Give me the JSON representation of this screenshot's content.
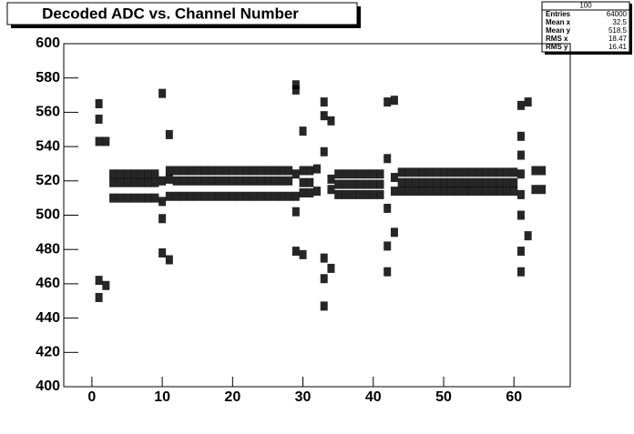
{
  "chart_data": {
    "type": "scatter",
    "title": "Decoded ADC vs. Channel Number",
    "stats": {
      "title": "100",
      "rows": [
        {
          "label": "Entries",
          "value": "64000"
        },
        {
          "label": "Mean x",
          "value": "32.5"
        },
        {
          "label": "Mean y",
          "value": "518.5"
        },
        {
          "label": "RMS x",
          "value": "18.47"
        },
        {
          "label": "RMS y",
          "value": "16.41"
        }
      ]
    },
    "color": "#000000",
    "xlim": [
      -4,
      68
    ],
    "ylim": [
      400,
      600
    ],
    "xticks": [
      0,
      10,
      20,
      30,
      40,
      50,
      60
    ],
    "yticks": [
      400,
      420,
      440,
      460,
      480,
      500,
      520,
      540,
      560,
      580,
      600
    ],
    "x": [
      1,
      1,
      1,
      1,
      1,
      2,
      2,
      3,
      3,
      3,
      4,
      4,
      4,
      5,
      5,
      5,
      6,
      6,
      6,
      7,
      7,
      7,
      8,
      8,
      8,
      9,
      9,
      9,
      10,
      10,
      10,
      10,
      10,
      11,
      11,
      11,
      11,
      11,
      12,
      12,
      12,
      13,
      13,
      13,
      14,
      14,
      14,
      15,
      15,
      15,
      16,
      16,
      16,
      17,
      17,
      17,
      18,
      18,
      18,
      19,
      19,
      19,
      20,
      20,
      20,
      21,
      21,
      21,
      22,
      22,
      22,
      23,
      23,
      23,
      24,
      24,
      24,
      25,
      25,
      25,
      26,
      26,
      26,
      27,
      27,
      27,
      28,
      28,
      28,
      29,
      29,
      29,
      29,
      29,
      29,
      30,
      30,
      30,
      30,
      30,
      31,
      31,
      31,
      32,
      32,
      33,
      33,
      33,
      33,
      33,
      33,
      34,
      34,
      34,
      34,
      35,
      35,
      35,
      36,
      36,
      36,
      37,
      37,
      37,
      38,
      38,
      38,
      39,
      39,
      39,
      40,
      40,
      40,
      41,
      41,
      41,
      42,
      42,
      42,
      42,
      42,
      43,
      43,
      43,
      43,
      44,
      44,
      44,
      45,
      45,
      45,
      46,
      46,
      46,
      47,
      47,
      47,
      48,
      48,
      48,
      49,
      49,
      49,
      50,
      50,
      50,
      51,
      51,
      51,
      52,
      52,
      52,
      53,
      53,
      53,
      54,
      54,
      54,
      55,
      55,
      55,
      56,
      56,
      56,
      57,
      57,
      57,
      58,
      58,
      58,
      59,
      59,
      59,
      60,
      60,
      60,
      61,
      61,
      61,
      61,
      61,
      61,
      61,
      61,
      62,
      62,
      63,
      63,
      64,
      64
    ],
    "y": [
      565,
      556,
      543,
      462,
      452,
      543,
      459,
      524,
      519,
      510,
      524,
      519,
      510,
      524,
      519,
      510,
      524,
      519,
      510,
      524,
      519,
      510,
      524,
      519,
      510,
      524,
      519,
      510,
      571,
      498,
      478,
      508,
      520,
      547,
      474,
      526,
      521,
      511,
      526,
      520,
      511,
      526,
      520,
      511,
      526,
      520,
      511,
      526,
      520,
      511,
      526,
      520,
      511,
      526,
      520,
      511,
      526,
      520,
      511,
      526,
      520,
      511,
      526,
      520,
      511,
      526,
      520,
      511,
      526,
      520,
      511,
      526,
      520,
      511,
      526,
      520,
      511,
      526,
      520,
      511,
      526,
      520,
      511,
      526,
      520,
      511,
      526,
      520,
      511,
      576,
      573,
      502,
      479,
      524,
      511,
      549,
      477,
      526,
      519,
      513,
      526,
      519,
      513,
      527,
      514,
      566,
      558,
      537,
      475,
      463,
      447,
      555,
      469,
      521,
      515,
      524,
      518,
      512,
      524,
      518,
      512,
      524,
      518,
      512,
      524,
      518,
      512,
      524,
      518,
      512,
      524,
      518,
      512,
      524,
      518,
      512,
      566,
      533,
      504,
      482,
      467,
      567,
      490,
      522,
      514,
      525,
      519,
      514,
      525,
      519,
      514,
      525,
      519,
      514,
      525,
      519,
      514,
      525,
      519,
      514,
      525,
      519,
      514,
      525,
      519,
      514,
      525,
      519,
      514,
      525,
      519,
      514,
      525,
      519,
      514,
      525,
      519,
      514,
      525,
      519,
      514,
      525,
      519,
      514,
      525,
      519,
      514,
      525,
      519,
      514,
      525,
      519,
      514,
      525,
      519,
      514,
      564,
      546,
      535,
      500,
      479,
      467,
      524,
      512,
      566,
      488,
      526,
      515,
      526,
      515
    ]
  }
}
